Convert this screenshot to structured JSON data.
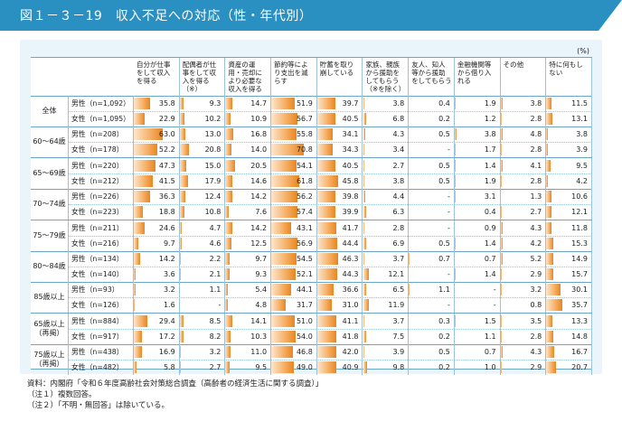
{
  "title": "図１－３－19　収入不足への対応（性・年代別）",
  "unit": "(%)",
  "chart_data": {
    "type": "table",
    "columns": [
      "自分が仕事をして収入を得る",
      "配偶者が仕事をして収入を得る（※）",
      "資産の運用・売却により必要な収入を得る",
      "節約等により支出を減らす",
      "貯蓄を取り崩している",
      "家族、親族から援助をしてもらう（※を除く）",
      "友人、知人等から援助をしてもらう",
      "金融機関等から借り入れる",
      "その他",
      "特に何もしない"
    ],
    "groups": [
      {
        "label": "全体",
        "rows": [
          {
            "sex": "男性",
            "n": "（n=1,092）",
            "values": [
              "35.8",
              "9.3",
              "14.7",
              "51.9",
              "39.7",
              "3.8",
              "0.4",
              "1.9",
              "3.8",
              "11.5"
            ]
          },
          {
            "sex": "女性",
            "n": "（n=1,095）",
            "values": [
              "22.9",
              "10.2",
              "10.9",
              "56.7",
              "40.5",
              "6.8",
              "0.2",
              "1.2",
              "2.8",
              "13.1"
            ]
          }
        ]
      },
      {
        "label": "60～64歳",
        "rows": [
          {
            "sex": "男性",
            "n": "（n=208）",
            "values": [
              "63.0",
              "13.0",
              "16.8",
              "55.8",
              "34.1",
              "4.3",
              "0.5",
              "3.8",
              "4.8",
              "3.8"
            ]
          },
          {
            "sex": "女性",
            "n": "（n=178）",
            "values": [
              "52.2",
              "20.8",
              "14.0",
              "70.8",
              "34.3",
              "3.4",
              "-",
              "1.7",
              "2.8",
              "3.9"
            ]
          }
        ]
      },
      {
        "label": "65～69歳",
        "rows": [
          {
            "sex": "男性",
            "n": "（n=220）",
            "values": [
              "47.3",
              "15.0",
              "20.5",
              "54.1",
              "40.5",
              "2.7",
              "0.5",
              "1.4",
              "4.1",
              "9.5"
            ]
          },
          {
            "sex": "女性",
            "n": "（n=212）",
            "values": [
              "41.5",
              "17.9",
              "14.6",
              "61.8",
              "45.8",
              "3.8",
              "0.5",
              "1.9",
              "2.8",
              "4.2"
            ]
          }
        ]
      },
      {
        "label": "70～74歳",
        "rows": [
          {
            "sex": "男性",
            "n": "（n=226）",
            "values": [
              "36.3",
              "12.4",
              "14.2",
              "56.2",
              "39.8",
              "4.4",
              "-",
              "3.1",
              "1.3",
              "10.6"
            ]
          },
          {
            "sex": "女性",
            "n": "（n=223）",
            "values": [
              "18.8",
              "10.8",
              "7.6",
              "57.4",
              "39.9",
              "6.3",
              "-",
              "0.4",
              "2.7",
              "12.1"
            ]
          }
        ]
      },
      {
        "label": "75～79歳",
        "rows": [
          {
            "sex": "男性",
            "n": "（n=211）",
            "values": [
              "24.6",
              "4.7",
              "14.2",
              "43.1",
              "41.7",
              "2.8",
              "-",
              "0.9",
              "4.3",
              "11.8"
            ]
          },
          {
            "sex": "女性",
            "n": "（n=216）",
            "values": [
              "9.7",
              "4.6",
              "12.5",
              "56.9",
              "44.4",
              "6.9",
              "0.5",
              "1.4",
              "4.2",
              "15.3"
            ]
          }
        ]
      },
      {
        "label": "80～84歳",
        "rows": [
          {
            "sex": "男性",
            "n": "（n=134）",
            "values": [
              "14.2",
              "2.2",
              "9.7",
              "54.5",
              "46.3",
              "3.7",
              "0.7",
              "0.7",
              "5.2",
              "14.9"
            ]
          },
          {
            "sex": "女性",
            "n": "（n=140）",
            "values": [
              "3.6",
              "2.1",
              "9.3",
              "52.1",
              "44.3",
              "12.1",
              "-",
              "1.4",
              "2.9",
              "15.7"
            ]
          }
        ]
      },
      {
        "label": "85歳以上",
        "rows": [
          {
            "sex": "男性",
            "n": "（n=93）",
            "values": [
              "3.2",
              "1.1",
              "5.4",
              "44.1",
              "36.6",
              "6.5",
              "1.1",
              "-",
              "3.2",
              "30.1"
            ]
          },
          {
            "sex": "女性",
            "n": "（n=126）",
            "values": [
              "1.6",
              "-",
              "4.8",
              "31.7",
              "31.0",
              "11.9",
              "-",
              "-",
              "0.8",
              "35.7"
            ]
          }
        ]
      },
      {
        "label": "65歳以上\n（再掲）",
        "rows": [
          {
            "sex": "男性",
            "n": "（n=884）",
            "values": [
              "29.4",
              "8.5",
              "14.1",
              "51.0",
              "41.1",
              "3.7",
              "0.3",
              "1.5",
              "3.5",
              "13.3"
            ]
          },
          {
            "sex": "女性",
            "n": "（n=917）",
            "values": [
              "17.2",
              "8.2",
              "10.3",
              "54.0",
              "41.8",
              "7.5",
              "0.2",
              "1.1",
              "2.8",
              "14.8"
            ]
          }
        ]
      },
      {
        "label": "75歳以上\n（再掲）",
        "rows": [
          {
            "sex": "男性",
            "n": "（n=438）",
            "values": [
              "16.9",
              "3.2",
              "11.0",
              "46.8",
              "42.0",
              "3.9",
              "0.5",
              "0.7",
              "4.3",
              "16.7"
            ]
          },
          {
            "sex": "女性",
            "n": "（n=482）",
            "values": [
              "5.8",
              "2.7",
              "9.5",
              "49.0",
              "40.9",
              "9.8",
              "0.2",
              "1.0",
              "2.9",
              "20.7"
            ]
          }
        ]
      }
    ],
    "bar_scale_max": 100,
    "bar_color": "#e8861f"
  },
  "notes": [
    "資料：内閣府「令和６年度高齢社会対策総合調査（高齢者の経済生活に関する調査）」",
    "（注１）複数回答。",
    "（注２）「不明・無回答」は除いている。"
  ]
}
